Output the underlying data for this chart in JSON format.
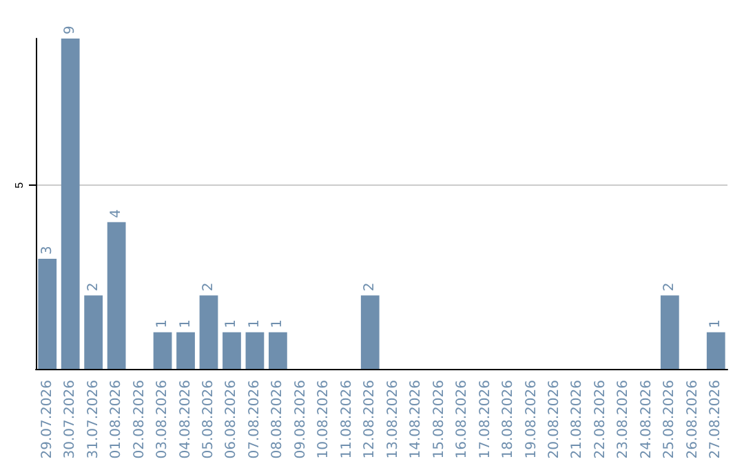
{
  "chart_data": {
    "type": "bar",
    "categories": [
      "29.07.2026",
      "30.07.2026",
      "31.07.2026",
      "01.08.2026",
      "02.08.2026",
      "03.08.2026",
      "04.08.2026",
      "05.08.2026",
      "06.08.2026",
      "07.08.2026",
      "08.08.2026",
      "09.08.2026",
      "10.08.2026",
      "11.08.2026",
      "12.08.2026",
      "13.08.2026",
      "14.08.2026",
      "15.08.2026",
      "16.08.2026",
      "17.08.2026",
      "18.08.2026",
      "19.08.2026",
      "20.08.2026",
      "21.08.2026",
      "22.08.2026",
      "23.08.2026",
      "24.08.2026",
      "25.08.2026",
      "26.08.2026",
      "27.08.2026"
    ],
    "values": [
      3,
      9,
      2,
      4,
      null,
      1,
      1,
      2,
      1,
      1,
      1,
      null,
      null,
      null,
      2,
      null,
      null,
      null,
      null,
      null,
      null,
      null,
      null,
      null,
      null,
      null,
      null,
      2,
      null,
      1
    ],
    "color": "#6f8fae",
    "ylim": [
      0,
      9
    ],
    "yticks": [
      5
    ],
    "grid": "y",
    "data_labels": true
  }
}
